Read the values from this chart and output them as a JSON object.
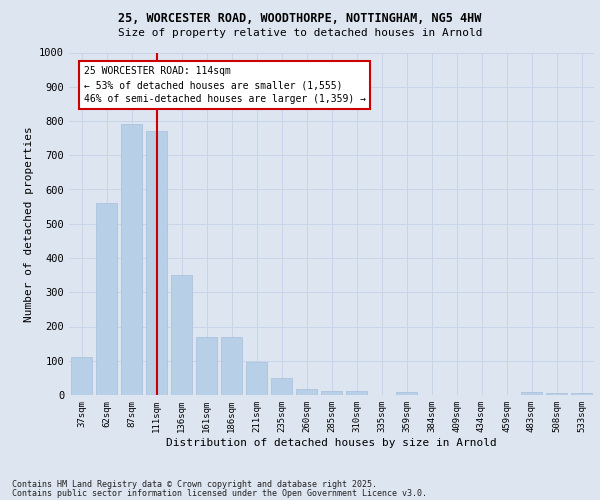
{
  "title1": "25, WORCESTER ROAD, WOODTHORPE, NOTTINGHAM, NG5 4HW",
  "title2": "Size of property relative to detached houses in Arnold",
  "xlabel": "Distribution of detached houses by size in Arnold",
  "ylabel": "Number of detached properties",
  "categories": [
    "37sqm",
    "62sqm",
    "87sqm",
    "111sqm",
    "136sqm",
    "161sqm",
    "186sqm",
    "211sqm",
    "235sqm",
    "260sqm",
    "285sqm",
    "310sqm",
    "335sqm",
    "359sqm",
    "384sqm",
    "409sqm",
    "434sqm",
    "459sqm",
    "483sqm",
    "508sqm",
    "533sqm"
  ],
  "values": [
    110,
    560,
    790,
    770,
    350,
    170,
    170,
    95,
    50,
    18,
    13,
    13,
    0,
    8,
    0,
    0,
    0,
    0,
    8,
    5,
    5
  ],
  "bar_color": "#b8cfe8",
  "bar_edge_color": "#b8cfe8",
  "grid_color": "#c8d4e8",
  "background_color": "#dde5f0",
  "vline_color": "#cc0000",
  "vline_index": 3,
  "annotation_text": "25 WORCESTER ROAD: 114sqm\n← 53% of detached houses are smaller (1,555)\n46% of semi-detached houses are larger (1,359) →",
  "annotation_box_color": "#ffffff",
  "annotation_box_edge": "#cc0000",
  "ylim": [
    0,
    1000
  ],
  "yticks": [
    0,
    100,
    200,
    300,
    400,
    500,
    600,
    700,
    800,
    900,
    1000
  ],
  "footer1": "Contains HM Land Registry data © Crown copyright and database right 2025.",
  "footer2": "Contains public sector information licensed under the Open Government Licence v3.0."
}
